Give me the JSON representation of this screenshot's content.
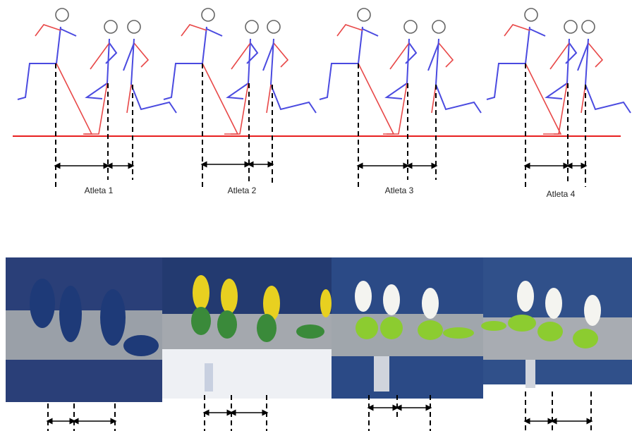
{
  "figure": {
    "labels": [
      "Atleta 1",
      "Atleta 2",
      "Atleta 3",
      "Atleta 4"
    ]
  }
}
